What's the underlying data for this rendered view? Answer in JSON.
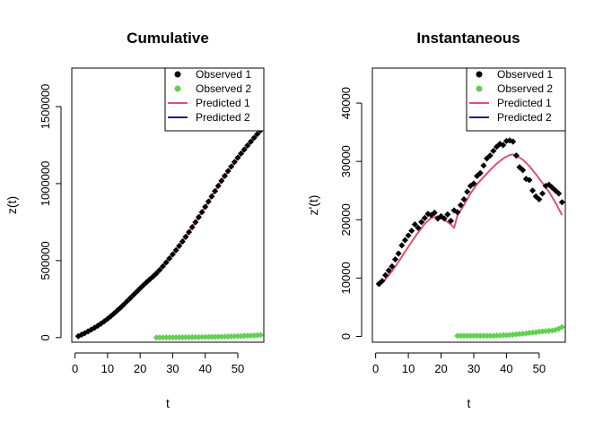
{
  "chart_data": [
    {
      "type": "line",
      "title": "Cumulative",
      "xlabel": "t",
      "ylabel": "z(t)",
      "xlim": [
        -1,
        58
      ],
      "ylim": [
        -30000,
        1750000
      ],
      "x_ticks": [
        0,
        10,
        20,
        30,
        40,
        50
      ],
      "x_tick_labels": [
        "0",
        "10",
        "20",
        "30",
        "40",
        "50"
      ],
      "y_ticks": [
        0,
        500000,
        1000000,
        1500000
      ],
      "y_tick_labels": [
        "0",
        "500000",
        "1000000",
        "1500000"
      ],
      "legend_position": "top-right",
      "legend": [
        {
          "label": "Observed 1",
          "kind": "point",
          "color": "#000000"
        },
        {
          "label": "Observed 2",
          "kind": "point",
          "color": "#61D04F"
        },
        {
          "label": "Predicted 1",
          "kind": "line",
          "color": "#DF536B"
        },
        {
          "label": "Predicted 2",
          "kind": "line",
          "color": "#2E1A6E"
        }
      ],
      "series": [
        {
          "name": "Observed 1",
          "kind": "points",
          "color": "#000000",
          "x": [
            1,
            2,
            3,
            4,
            5,
            6,
            7,
            8,
            9,
            10,
            11,
            12,
            13,
            14,
            15,
            16,
            17,
            18,
            19,
            20,
            21,
            22,
            23,
            24,
            25,
            26,
            27,
            28,
            29,
            30,
            31,
            32,
            33,
            34,
            35,
            36,
            37,
            38,
            39,
            40,
            41,
            42,
            43,
            44,
            45,
            46,
            47,
            48,
            49,
            50,
            51,
            52,
            53,
            54,
            55,
            56,
            57
          ],
          "y": [
            9000,
            19000,
            29000,
            40000,
            52000,
            64000,
            77000,
            91000,
            106000,
            122000,
            139000,
            157000,
            176000,
            195000,
            215000,
            236000,
            257000,
            278000,
            299000,
            320000,
            340000,
            360000,
            379000,
            397000,
            417000,
            439000,
            463000,
            488000,
            514000,
            540000,
            567000,
            595000,
            624000,
            654000,
            685000,
            717000,
            749000,
            782000,
            815000,
            849000,
            883000,
            917000,
            951000,
            985000,
            1018000,
            1050000,
            1081000,
            1111000,
            1140000,
            1168000,
            1195000,
            1221000,
            1247000,
            1272000,
            1297000,
            1321000,
            1345000
          ]
        },
        {
          "name": "Observed 2",
          "kind": "points",
          "color": "#61D04F",
          "x": [
            25,
            26,
            27,
            28,
            29,
            30,
            31,
            32,
            33,
            34,
            35,
            36,
            37,
            38,
            39,
            40,
            41,
            42,
            43,
            44,
            45,
            46,
            47,
            48,
            49,
            50,
            51,
            52,
            53,
            54,
            55,
            56,
            57
          ],
          "y": [
            200,
            400,
            600,
            800,
            1000,
            1200,
            1400,
            1600,
            1800,
            2000,
            2200,
            2400,
            2700,
            3000,
            3300,
            3600,
            4000,
            4400,
            4800,
            5300,
            5800,
            6400,
            7000,
            7700,
            8400,
            9200,
            10000,
            10900,
            11800,
            12800,
            13900,
            15100,
            16500
          ]
        },
        {
          "name": "Predicted 1",
          "kind": "line",
          "color": "#DF536B",
          "x": [
            1,
            5,
            10,
            15,
            20,
            25,
            30,
            35,
            40,
            45,
            50,
            55,
            57
          ],
          "y": [
            9000,
            52000,
            122000,
            215000,
            320000,
            417000,
            540000,
            685000,
            849000,
            1018000,
            1168000,
            1297000,
            1345000
          ]
        },
        {
          "name": "Predicted 2",
          "kind": "line",
          "color": "#2E1A6E",
          "x": [
            25,
            30,
            35,
            40,
            45,
            50,
            55,
            57
          ],
          "y": [
            200,
            1200,
            2200,
            3600,
            5800,
            9200,
            13900,
            16500
          ]
        }
      ]
    },
    {
      "type": "line",
      "title": "Instantaneous",
      "xlabel": "t",
      "ylabel": "z'(t)",
      "xlim": [
        -1,
        58
      ],
      "ylim": [
        -1000,
        46000
      ],
      "x_ticks": [
        0,
        10,
        20,
        30,
        40,
        50
      ],
      "x_tick_labels": [
        "0",
        "10",
        "20",
        "30",
        "40",
        "50"
      ],
      "y_ticks": [
        0,
        10000,
        20000,
        30000,
        40000
      ],
      "y_tick_labels": [
        "0",
        "10000",
        "20000",
        "30000",
        "40000"
      ],
      "legend_position": "top-right",
      "legend": [
        {
          "label": "Observed 1",
          "kind": "point",
          "color": "#000000"
        },
        {
          "label": "Observed 2",
          "kind": "point",
          "color": "#61D04F"
        },
        {
          "label": "Predicted 1",
          "kind": "line",
          "color": "#DF536B"
        },
        {
          "label": "Predicted 2",
          "kind": "line",
          "color": "#2E1A6E"
        }
      ],
      "series": [
        {
          "name": "Observed 1",
          "kind": "points",
          "color": "#000000",
          "x": [
            1,
            2,
            3,
            4,
            5,
            6,
            7,
            8,
            9,
            10,
            11,
            12,
            13,
            14,
            15,
            16,
            17,
            18,
            19,
            20,
            21,
            22,
            23,
            24,
            25,
            26,
            27,
            28,
            29,
            30,
            31,
            32,
            33,
            34,
            35,
            36,
            37,
            38,
            39,
            40,
            41,
            42,
            43,
            44,
            45,
            46,
            47,
            48,
            49,
            50,
            51,
            52,
            53,
            54,
            55,
            56,
            57
          ],
          "y": [
            9000,
            9500,
            10500,
            11300,
            12000,
            13200,
            14200,
            15600,
            16500,
            17300,
            18100,
            19200,
            18600,
            19600,
            20300,
            21000,
            20800,
            21200,
            20200,
            20600,
            20200,
            20900,
            19800,
            21600,
            21300,
            22500,
            23500,
            24800,
            25800,
            26200,
            27500,
            28000,
            29300,
            30500,
            31000,
            31800,
            32500,
            33000,
            32800,
            33500,
            33600,
            33400,
            31000,
            29000,
            28500,
            27000,
            26800,
            25000,
            24000,
            23500,
            24500,
            25800,
            26000,
            25500,
            25000,
            24500,
            23000
          ]
        },
        {
          "name": "Observed 2",
          "kind": "points",
          "color": "#61D04F",
          "x": [
            25,
            26,
            27,
            28,
            29,
            30,
            31,
            32,
            33,
            34,
            35,
            36,
            37,
            38,
            39,
            40,
            41,
            42,
            43,
            44,
            45,
            46,
            47,
            48,
            49,
            50,
            51,
            52,
            53,
            54,
            55,
            56,
            57
          ],
          "y": [
            100,
            100,
            100,
            100,
            100,
            100,
            100,
            100,
            100,
            100,
            100,
            100,
            150,
            150,
            200,
            200,
            250,
            300,
            350,
            400,
            450,
            500,
            600,
            650,
            700,
            800,
            850,
            900,
            950,
            1000,
            1100,
            1300,
            1600
          ]
        },
        {
          "name": "Predicted 1",
          "kind": "line",
          "color": "#DF536B",
          "x": [
            1,
            3,
            5,
            7,
            9,
            11,
            13,
            15,
            17,
            19,
            21,
            23,
            24,
            25,
            27,
            29,
            31,
            33,
            35,
            37,
            39,
            41,
            42,
            43,
            45,
            47,
            49,
            51,
            53,
            55,
            57
          ],
          "y": [
            8600,
            9800,
            11200,
            12800,
            14500,
            16200,
            17800,
            19300,
            20300,
            20600,
            20000,
            19200,
            18600,
            20700,
            22500,
            24500,
            26100,
            27300,
            28500,
            29600,
            30500,
            31100,
            31200,
            31000,
            30300,
            29200,
            27800,
            26300,
            24800,
            22900,
            20800
          ]
        },
        {
          "name": "Predicted 2",
          "kind": "line",
          "color": "#2E1A6E",
          "x": [
            25,
            30,
            35,
            40,
            45,
            50,
            55,
            57
          ],
          "y": [
            100,
            100,
            100,
            200,
            450,
            800,
            1100,
            1600
          ]
        }
      ]
    }
  ]
}
